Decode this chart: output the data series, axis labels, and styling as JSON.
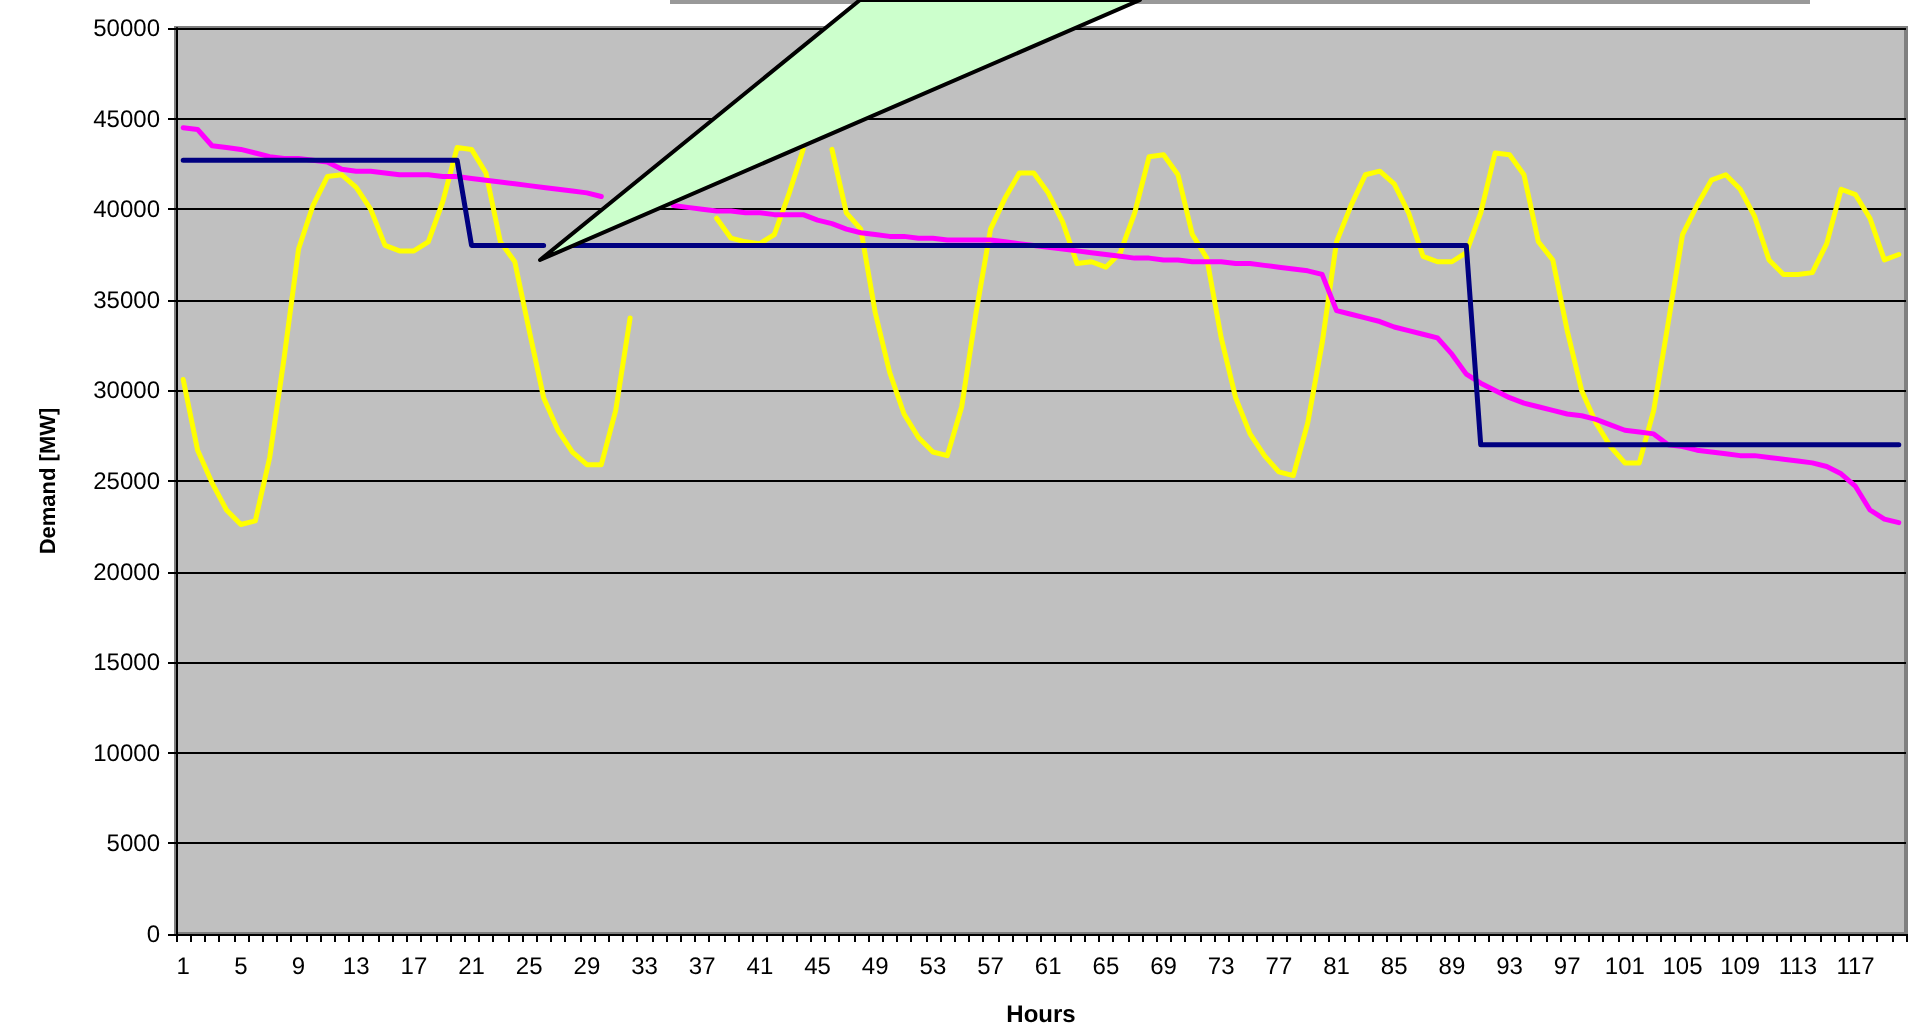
{
  "chart_data": {
    "type": "line",
    "xlabel": "Hours",
    "ylabel": "Demand [MW]",
    "categories": [
      "1",
      null,
      null,
      null,
      "5",
      null,
      null,
      null,
      "9",
      null,
      null,
      null,
      "13",
      null,
      null,
      null,
      "17",
      null,
      null,
      null,
      "21",
      null,
      null,
      null,
      "25",
      null,
      null,
      null,
      "29",
      null,
      null,
      null,
      "33",
      null,
      null,
      null,
      "37",
      null,
      null,
      null,
      "41",
      null,
      null,
      null,
      "45",
      null,
      null,
      null,
      "49",
      null,
      null,
      null,
      "53",
      null,
      null,
      null,
      "57",
      null,
      null,
      null,
      "61",
      null,
      null,
      null,
      "65",
      null,
      null,
      null,
      "69",
      null,
      null,
      null,
      "73",
      null,
      null,
      null,
      "77",
      null,
      null,
      null,
      "81",
      null,
      null,
      null,
      "85",
      null,
      null,
      null,
      "89",
      null,
      null,
      null,
      "93",
      null,
      null,
      null,
      "97",
      null,
      null,
      null,
      "101",
      null,
      null,
      null,
      "105",
      null,
      null,
      null,
      "109",
      null,
      null,
      null,
      "113",
      null,
      null,
      null,
      "117",
      null,
      null,
      null
    ],
    "series": [
      {
        "color": "#ffff00",
        "values": [
          30600,
          26700,
          24900,
          23400,
          22600,
          22800,
          26300,
          31800,
          37800,
          40200,
          41800,
          41900,
          41200,
          40000,
          38000,
          37700,
          37700,
          38200,
          40400,
          43400,
          43300,
          42000,
          38200,
          37100,
          33300,
          29600,
          27800,
          26600,
          25900,
          25900,
          28900,
          34000,
          null,
          null,
          null,
          null,
          null,
          39500,
          38400,
          38200,
          38100,
          38600,
          40800,
          43300,
          null,
          43300,
          39800,
          38900,
          34300,
          31000,
          28700,
          27400,
          26600,
          26400,
          29100,
          34300,
          38900,
          40600,
          42000,
          42000,
          40900,
          39300,
          37000,
          37100,
          36800,
          37600,
          39800,
          42900,
          43000,
          41900,
          38600,
          37300,
          32900,
          29600,
          27600,
          26400,
          25500,
          25300,
          28200,
          32600,
          38200,
          40200,
          41900,
          42100,
          41400,
          39800,
          37400,
          37100,
          37100,
          37600,
          39800,
          43100,
          43000,
          41900,
          38200,
          37200,
          33300,
          30000,
          28200,
          26900,
          26000,
          26000,
          28900,
          33700,
          38600,
          40200,
          41600,
          41900,
          41100,
          39600,
          37200,
          36400,
          36400,
          36500,
          38100,
          41100,
          40800,
          39500,
          37200,
          37500
        ]
      },
      {
        "color": "#ff00ff",
        "values": [
          44500,
          44400,
          43500,
          43400,
          43300,
          43100,
          42900,
          42800,
          42800,
          42700,
          42600,
          42200,
          42100,
          42100,
          42000,
          41900,
          41900,
          41900,
          41800,
          41800,
          41700,
          41600,
          41500,
          41400,
          41300,
          41200,
          41100,
          41000,
          40900,
          40700,
          null,
          null,
          null,
          null,
          40200,
          40100,
          40000,
          39900,
          39900,
          39800,
          39800,
          39700,
          39700,
          39700,
          39400,
          39200,
          38900,
          38700,
          38600,
          38500,
          38500,
          38400,
          38400,
          38300,
          38300,
          38300,
          38300,
          38200,
          38100,
          38000,
          37900,
          37800,
          37700,
          37600,
          37500,
          37400,
          37300,
          37300,
          37200,
          37200,
          37100,
          37100,
          37100,
          37000,
          37000,
          36900,
          36800,
          36700,
          36600,
          36400,
          34400,
          34200,
          34000,
          33800,
          33500,
          33300,
          33100,
          32900,
          32000,
          30900,
          30400,
          30000,
          29600,
          29300,
          29100,
          28900,
          28700,
          28600,
          28400,
          28100,
          27800,
          27700,
          27600,
          27000,
          26900,
          26700,
          26600,
          26500,
          26400,
          26400,
          26300,
          26200,
          26100,
          26000,
          25800,
          25400,
          24700,
          23400,
          22900,
          22700
        ]
      },
      {
        "color": "#000080",
        "values": [
          42700,
          42700,
          42700,
          42700,
          42700,
          42700,
          42700,
          42700,
          42700,
          42700,
          42700,
          42700,
          42700,
          42700,
          42700,
          42700,
          42700,
          42700,
          42700,
          42700,
          38000,
          38000,
          38000,
          38000,
          38000,
          38000,
          null,
          38000,
          38000,
          38000,
          38000,
          38000,
          38000,
          38000,
          38000,
          38000,
          38000,
          38000,
          38000,
          38000,
          38000,
          38000,
          38000,
          38000,
          38000,
          38000,
          38000,
          38000,
          38000,
          38000,
          38000,
          38000,
          38000,
          38000,
          38000,
          38000,
          38000,
          38000,
          38000,
          38000,
          38000,
          38000,
          38000,
          38000,
          38000,
          38000,
          38000,
          38000,
          38000,
          38000,
          38000,
          38000,
          38000,
          38000,
          38000,
          38000,
          38000,
          38000,
          38000,
          38000,
          38000,
          38000,
          38000,
          38000,
          38000,
          38000,
          38000,
          38000,
          38000,
          38000,
          27000,
          27000,
          27000,
          27000,
          27000,
          27000,
          27000,
          27000,
          27000,
          27000,
          27000,
          27000,
          27000,
          27000,
          27000,
          27000,
          27000,
          27000,
          27000,
          27000,
          27000,
          27000,
          27000,
          27000,
          27000,
          27000,
          27000,
          27000,
          27000,
          27000
        ]
      }
    ],
    "ylim": [
      0,
      50000
    ],
    "yticks": [
      0,
      5000,
      10000,
      15000,
      20000,
      25000,
      30000,
      35000,
      40000,
      45000,
      50000
    ],
    "grid": "y",
    "marker": "none",
    "line_style": "solid"
  }
}
